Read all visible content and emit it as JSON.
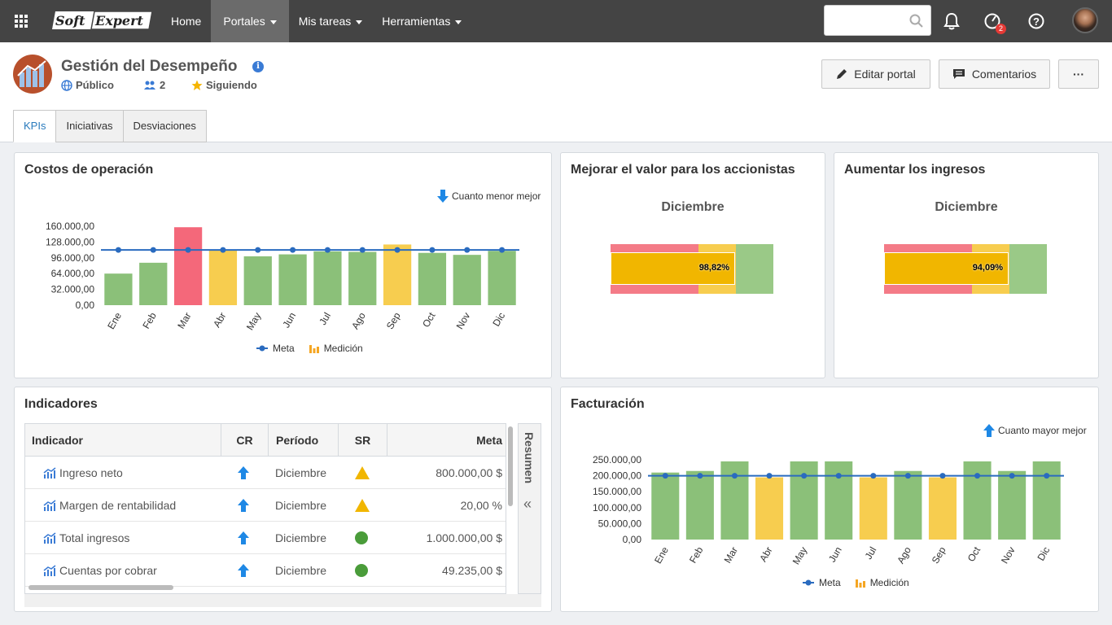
{
  "topbar": {
    "logo": "SoftExpert",
    "nav": [
      {
        "label": "Home"
      },
      {
        "label": "Portales"
      },
      {
        "label": "Mis tareas"
      },
      {
        "label": "Herramientas"
      }
    ],
    "search_placeholder": "",
    "notification_badge": "2"
  },
  "header": {
    "title": "Gestión del Desempeño",
    "visibility": "Público",
    "members": "2",
    "following": "Siguiendo",
    "edit_button": "Editar portal",
    "comments_button": "Comentarios",
    "more_button": "···"
  },
  "tabs": [
    {
      "label": "KPIs"
    },
    {
      "label": "Iniciativas"
    },
    {
      "label": "Desviaciones"
    }
  ],
  "costos": {
    "title": "Costos de operación",
    "hint": "Cuanto menor mejor",
    "legend_meta": "Meta",
    "legend_medicion": "Medición"
  },
  "accionistas": {
    "title": "Mejorar el valor para los accionistas",
    "month": "Diciembre",
    "value_label": "98,82%"
  },
  "ingresos": {
    "title": "Aumentar los ingresos",
    "month": "Diciembre",
    "value_label": "94,09%"
  },
  "indicadores": {
    "title": "Indicadores",
    "side_tab": "Resumen",
    "collapse": "«",
    "columns": [
      "Indicador",
      "CR",
      "Período",
      "SR",
      "Meta"
    ],
    "rows": [
      {
        "name": "Ingreso neto",
        "period": "Diciembre",
        "status": "warning",
        "meta": "800.000,00 $"
      },
      {
        "name": "Margen de rentabilidad",
        "period": "Diciembre",
        "status": "warning",
        "meta": "20,00 %"
      },
      {
        "name": "Total ingresos",
        "period": "Diciembre",
        "status": "ok",
        "meta": "1.000.000,00 $"
      },
      {
        "name": "Cuentas por cobrar",
        "period": "Diciembre",
        "status": "ok",
        "meta": "49.235,00 $"
      }
    ]
  },
  "facturacion": {
    "title": "Facturación",
    "hint": "Cuanto mayor mejor",
    "legend_meta": "Meta",
    "legend_medicion": "Medición"
  },
  "colors": {
    "green": "#8bc079",
    "yellow": "#f7cd4f",
    "red": "#f4687a",
    "meta_line": "#2a6bbf",
    "accent": "#2a7bbd"
  },
  "chart_data": [
    {
      "type": "bar",
      "title": "Costos de operación",
      "categories": [
        "Ene",
        "Feb",
        "Mar",
        "Abr",
        "May",
        "Jun",
        "Jul",
        "Ago",
        "Sep",
        "Oct",
        "Nov",
        "Dic"
      ],
      "series": [
        {
          "name": "Medición",
          "values": [
            64000,
            86000,
            158000,
            112000,
            99000,
            103000,
            109000,
            108000,
            123000,
            106000,
            102000,
            110000
          ],
          "colors": [
            "green",
            "green",
            "red",
            "yellow",
            "green",
            "green",
            "green",
            "green",
            "yellow",
            "green",
            "green",
            "green"
          ]
        },
        {
          "name": "Meta",
          "values": [
            112000,
            112000,
            112000,
            112000,
            112000,
            112000,
            112000,
            112000,
            112000,
            112000,
            112000,
            112000
          ]
        }
      ],
      "yticks": [
        "160.000,00",
        "128.000,00",
        "96.000,00",
        "64.000,00",
        "32.000,00",
        "0,00"
      ],
      "ylim": [
        0,
        160000
      ]
    },
    {
      "type": "bar",
      "title": "Facturación",
      "categories": [
        "Ene",
        "Feb",
        "Mar",
        "Abr",
        "May",
        "Jun",
        "Jul",
        "Ago",
        "Sep",
        "Oct",
        "Nov",
        "Dic"
      ],
      "series": [
        {
          "name": "Medición",
          "values": [
            210000,
            215000,
            245000,
            195000,
            245000,
            245000,
            195000,
            215000,
            195000,
            245000,
            215000,
            245000
          ],
          "colors": [
            "green",
            "green",
            "green",
            "yellow",
            "green",
            "green",
            "yellow",
            "green",
            "yellow",
            "green",
            "green",
            "green"
          ]
        },
        {
          "name": "Meta",
          "values": [
            200000,
            200000,
            200000,
            200000,
            200000,
            200000,
            200000,
            200000,
            200000,
            200000,
            200000,
            200000
          ]
        }
      ],
      "yticks": [
        "250.000,00",
        "200.000,00",
        "150.000,00",
        "100.000,00",
        "50.000,00",
        "0,00"
      ],
      "ylim": [
        0,
        250000
      ]
    }
  ]
}
